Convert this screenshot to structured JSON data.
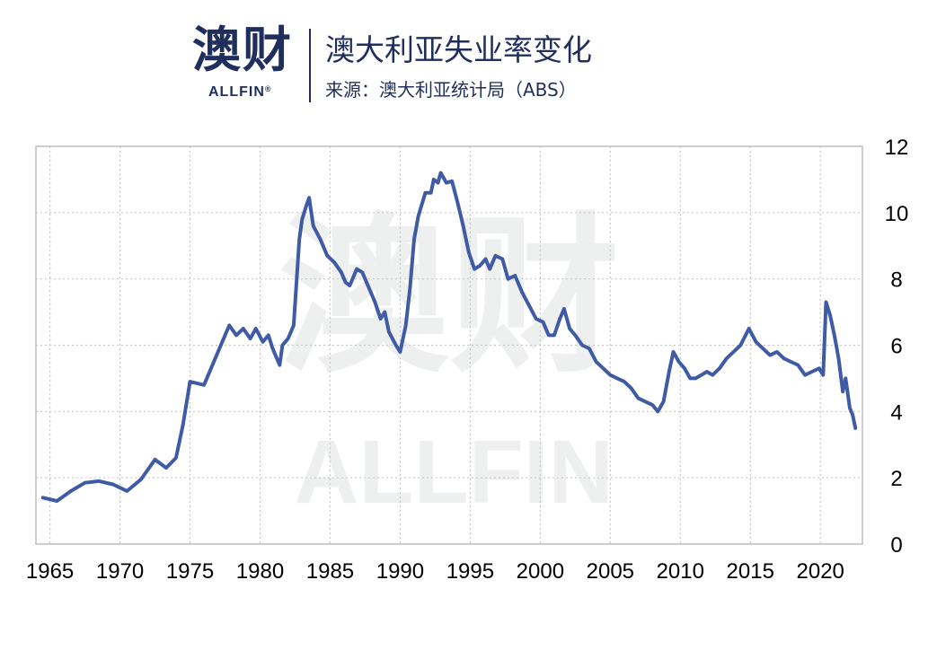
{
  "header": {
    "logo_cn": "澳财",
    "logo_en": "ALLFIN",
    "logo_reg": "®",
    "title": "澳大利亚失业率变化",
    "subtitle": "来源：澳大利亚统计局（ABS）"
  },
  "watermark": {
    "cn": "澳财",
    "en": "ALLFIN"
  },
  "colors": {
    "line": "#3f5ba6",
    "brand": "#1f2e5c",
    "grid": "#c8c8c8"
  },
  "chart_data": {
    "type": "line",
    "title": "澳大利亚失业率变化",
    "xlabel": "",
    "ylabel": "",
    "xlim": [
      1964,
      2023
    ],
    "ylim": [
      0,
      12
    ],
    "x_ticks": [
      "1965",
      "1970",
      "1975",
      "1980",
      "1985",
      "1990",
      "1995",
      "2000",
      "2005",
      "2010",
      "2015",
      "2020"
    ],
    "y_ticks": [
      "0",
      "2",
      "4",
      "6",
      "8",
      "10",
      "12"
    ],
    "y_axis_side": "right",
    "grid": true,
    "legend": "none",
    "series": [
      {
        "color": "#3f5ba6",
        "points": [
          [
            1964.5,
            1.4
          ],
          [
            1965.5,
            1.3
          ],
          [
            1966.5,
            1.6
          ],
          [
            1967.5,
            1.85
          ],
          [
            1968.5,
            1.9
          ],
          [
            1969.5,
            1.8
          ],
          [
            1970.5,
            1.6
          ],
          [
            1971.5,
            1.95
          ],
          [
            1972.5,
            2.55
          ],
          [
            1973.3,
            2.3
          ],
          [
            1974.0,
            2.6
          ],
          [
            1974.5,
            3.6
          ],
          [
            1975.0,
            4.9
          ],
          [
            1976.0,
            4.8
          ],
          [
            1977.0,
            5.8
          ],
          [
            1977.8,
            6.6
          ],
          [
            1978.3,
            6.3
          ],
          [
            1978.8,
            6.5
          ],
          [
            1979.3,
            6.2
          ],
          [
            1979.7,
            6.5
          ],
          [
            1980.2,
            6.1
          ],
          [
            1980.6,
            6.3
          ],
          [
            1980.9,
            5.9
          ],
          [
            1981.4,
            5.4
          ],
          [
            1981.6,
            6.0
          ],
          [
            1982.0,
            6.2
          ],
          [
            1982.4,
            6.6
          ],
          [
            1982.8,
            9.2
          ],
          [
            1983.0,
            9.8
          ],
          [
            1983.3,
            10.2
          ],
          [
            1983.5,
            10.45
          ],
          [
            1983.8,
            9.6
          ],
          [
            1984.3,
            9.2
          ],
          [
            1984.8,
            8.7
          ],
          [
            1985.3,
            8.5
          ],
          [
            1985.8,
            8.2
          ],
          [
            1986.1,
            7.9
          ],
          [
            1986.4,
            7.8
          ],
          [
            1986.9,
            8.3
          ],
          [
            1987.3,
            8.2
          ],
          [
            1987.8,
            7.7
          ],
          [
            1988.2,
            7.3
          ],
          [
            1988.6,
            6.8
          ],
          [
            1988.9,
            7.0
          ],
          [
            1989.2,
            6.4
          ],
          [
            1989.7,
            6.0
          ],
          [
            1990.0,
            5.8
          ],
          [
            1990.4,
            6.6
          ],
          [
            1990.7,
            7.7
          ],
          [
            1991.0,
            9.2
          ],
          [
            1991.3,
            9.9
          ],
          [
            1991.8,
            10.6
          ],
          [
            1992.2,
            10.6
          ],
          [
            1992.4,
            11.0
          ],
          [
            1992.7,
            10.9
          ],
          [
            1992.9,
            11.2
          ],
          [
            1993.3,
            10.9
          ],
          [
            1993.7,
            10.95
          ],
          [
            1994.1,
            10.3
          ],
          [
            1994.5,
            9.6
          ],
          [
            1994.9,
            8.8
          ],
          [
            1995.3,
            8.3
          ],
          [
            1995.7,
            8.4
          ],
          [
            1996.1,
            8.6
          ],
          [
            1996.4,
            8.3
          ],
          [
            1996.8,
            8.7
          ],
          [
            1997.3,
            8.6
          ],
          [
            1997.7,
            8.0
          ],
          [
            1998.2,
            8.1
          ],
          [
            1998.7,
            7.6
          ],
          [
            1999.2,
            7.2
          ],
          [
            1999.7,
            6.8
          ],
          [
            2000.2,
            6.7
          ],
          [
            2000.6,
            6.3
          ],
          [
            2001.0,
            6.3
          ],
          [
            2001.4,
            6.8
          ],
          [
            2001.7,
            7.1
          ],
          [
            2002.1,
            6.5
          ],
          [
            2002.5,
            6.3
          ],
          [
            2003.0,
            6.0
          ],
          [
            2003.5,
            5.9
          ],
          [
            2004.0,
            5.5
          ],
          [
            2004.5,
            5.3
          ],
          [
            2005.0,
            5.1
          ],
          [
            2005.5,
            5.0
          ],
          [
            2006.0,
            4.9
          ],
          [
            2006.5,
            4.7
          ],
          [
            2007.0,
            4.4
          ],
          [
            2007.5,
            4.3
          ],
          [
            2008.0,
            4.2
          ],
          [
            2008.4,
            4.0
          ],
          [
            2008.8,
            4.3
          ],
          [
            2009.2,
            5.2
          ],
          [
            2009.5,
            5.8
          ],
          [
            2009.9,
            5.5
          ],
          [
            2010.3,
            5.3
          ],
          [
            2010.7,
            5.0
          ],
          [
            2011.1,
            5.0
          ],
          [
            2011.5,
            5.1
          ],
          [
            2011.9,
            5.2
          ],
          [
            2012.3,
            5.1
          ],
          [
            2012.8,
            5.3
          ],
          [
            2013.3,
            5.6
          ],
          [
            2013.8,
            5.8
          ],
          [
            2014.3,
            6.0
          ],
          [
            2014.9,
            6.5
          ],
          [
            2015.4,
            6.1
          ],
          [
            2015.9,
            5.9
          ],
          [
            2016.4,
            5.7
          ],
          [
            2016.9,
            5.8
          ],
          [
            2017.4,
            5.6
          ],
          [
            2017.9,
            5.5
          ],
          [
            2018.4,
            5.4
          ],
          [
            2018.9,
            5.1
          ],
          [
            2019.4,
            5.2
          ],
          [
            2019.9,
            5.3
          ],
          [
            2020.2,
            5.1
          ],
          [
            2020.4,
            7.3
          ],
          [
            2020.7,
            6.9
          ],
          [
            2021.0,
            6.3
          ],
          [
            2021.3,
            5.6
          ],
          [
            2021.6,
            4.6
          ],
          [
            2021.8,
            5.0
          ],
          [
            2022.1,
            4.1
          ],
          [
            2022.3,
            3.9
          ],
          [
            2022.5,
            3.5
          ]
        ]
      }
    ]
  }
}
